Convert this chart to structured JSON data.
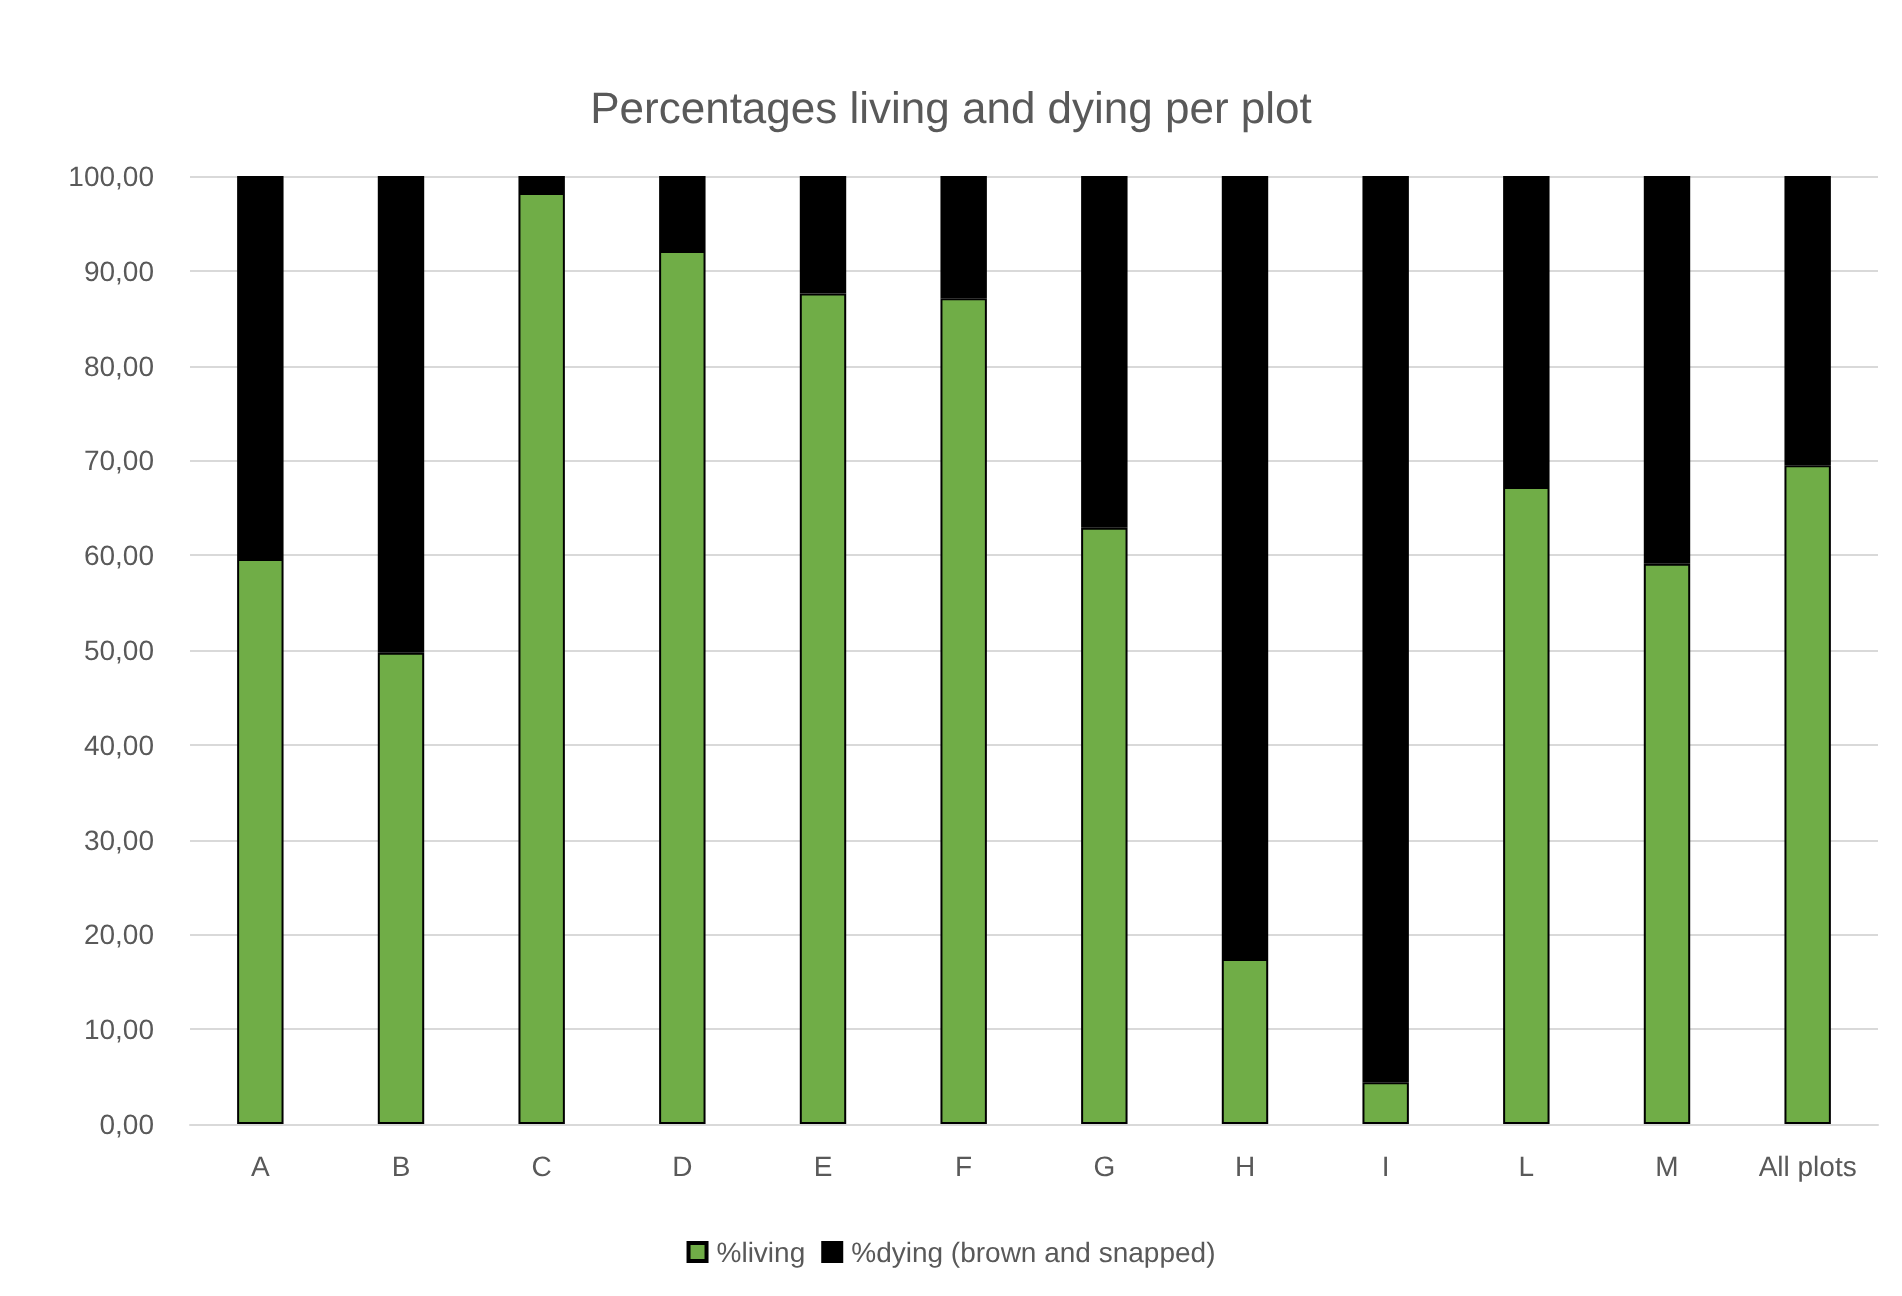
{
  "chart_data": {
    "type": "bar",
    "title": "Percentages living and dying per plot",
    "stacked": true,
    "categories": [
      "A",
      "B",
      "C",
      "D",
      "E",
      "F",
      "G",
      "H",
      "I",
      "L",
      "M",
      "All plots"
    ],
    "series": [
      {
        "name": "%living",
        "color": "#70ad47",
        "values": [
          59.6,
          49.7,
          98.2,
          92.1,
          87.6,
          87.1,
          62.9,
          17.4,
          4.4,
          67.2,
          59.1,
          69.5
        ]
      },
      {
        "name": "%dying (brown and snapped)",
        "color": "#000000",
        "values": [
          40.4,
          50.3,
          1.8,
          7.9,
          12.4,
          12.9,
          37.1,
          82.6,
          95.6,
          32.8,
          40.9,
          30.5
        ]
      }
    ],
    "ylim": [
      0,
      100
    ],
    "yticks": [
      {
        "value": 0,
        "label": "0,00"
      },
      {
        "value": 10,
        "label": "10,00"
      },
      {
        "value": 20,
        "label": "20,00"
      },
      {
        "value": 30,
        "label": "30,00"
      },
      {
        "value": 40,
        "label": "40,00"
      },
      {
        "value": 50,
        "label": "50,00"
      },
      {
        "value": 60,
        "label": "60,00"
      },
      {
        "value": 70,
        "label": "70,00"
      },
      {
        "value": 80,
        "label": "80,00"
      },
      {
        "value": 90,
        "label": "90,00"
      },
      {
        "value": 100,
        "label": "100,00"
      }
    ],
    "grid": "y",
    "legend": "bottom"
  }
}
